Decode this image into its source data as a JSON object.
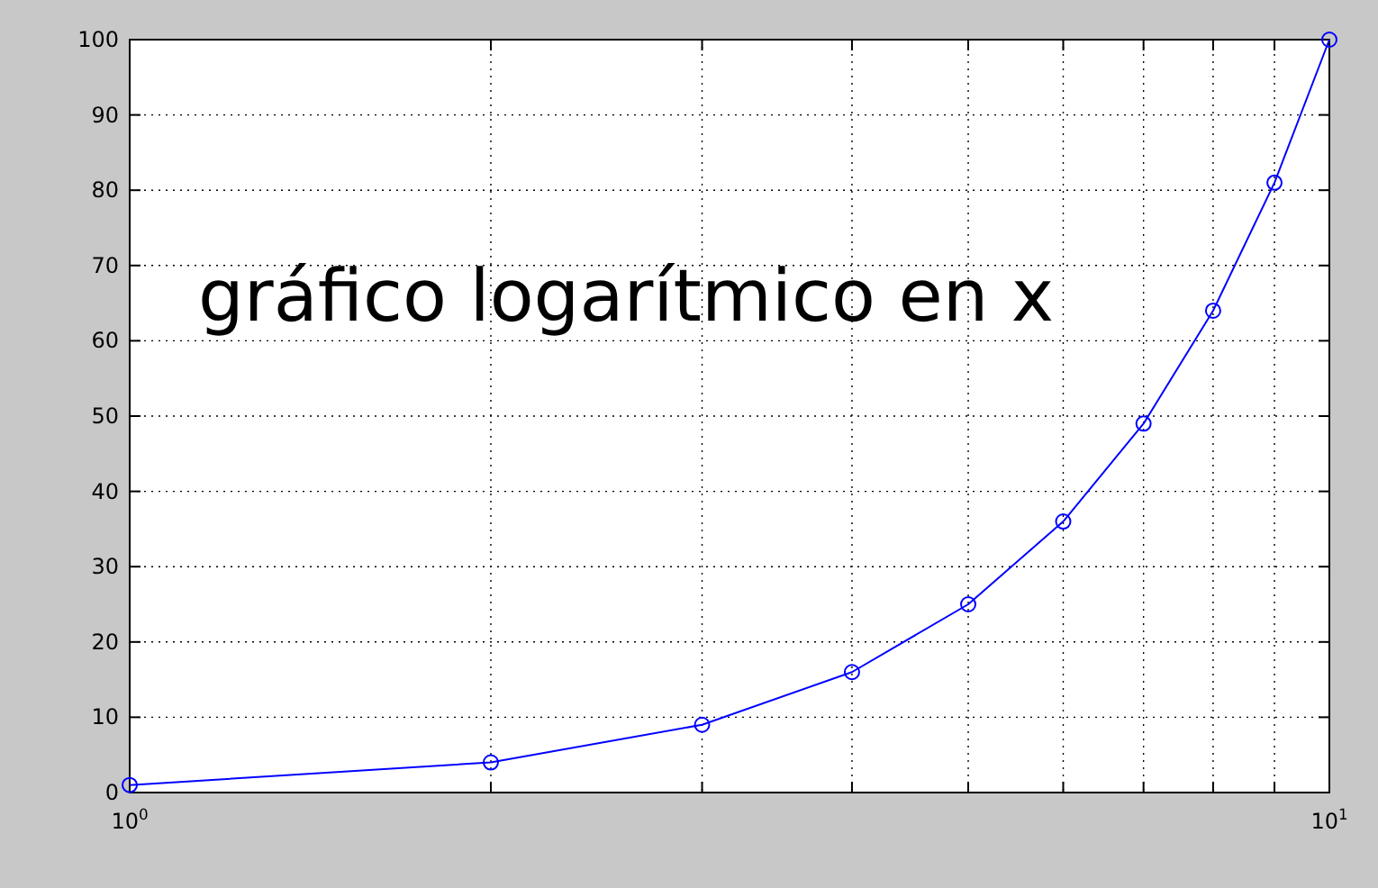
{
  "chart_data": {
    "type": "line",
    "x": [
      1,
      2,
      3,
      4,
      5,
      6,
      7,
      8,
      9,
      10
    ],
    "series": [
      {
        "color": "#0000ff",
        "values": [
          1,
          4,
          9,
          16,
          25,
          36,
          49,
          64,
          81,
          100
        ]
      }
    ],
    "xlim": [
      1,
      10
    ],
    "xticks": [
      {
        "value": 1,
        "label": "10$^{0}$"
      },
      {
        "value": 2,
        "label": null
      },
      {
        "value": 3,
        "label": null
      },
      {
        "value": 4,
        "label": null
      },
      {
        "value": 5,
        "label": null
      },
      {
        "value": 6,
        "label": null
      },
      {
        "value": 7,
        "label": null
      },
      {
        "value": 8,
        "label": null
      },
      {
        "value": 9,
        "label": null
      },
      {
        "value": 10,
        "label": "10$^{1}$"
      }
    ],
    "ylim": [
      0,
      100
    ],
    "yticks": [
      0,
      10,
      20,
      30,
      40,
      50,
      60,
      70,
      80,
      90,
      100
    ],
    "log": "x",
    "grid": true,
    "marker": "circle",
    "line_style": "solid",
    "annotations": [
      "gráfico logarítmico en x"
    ]
  }
}
